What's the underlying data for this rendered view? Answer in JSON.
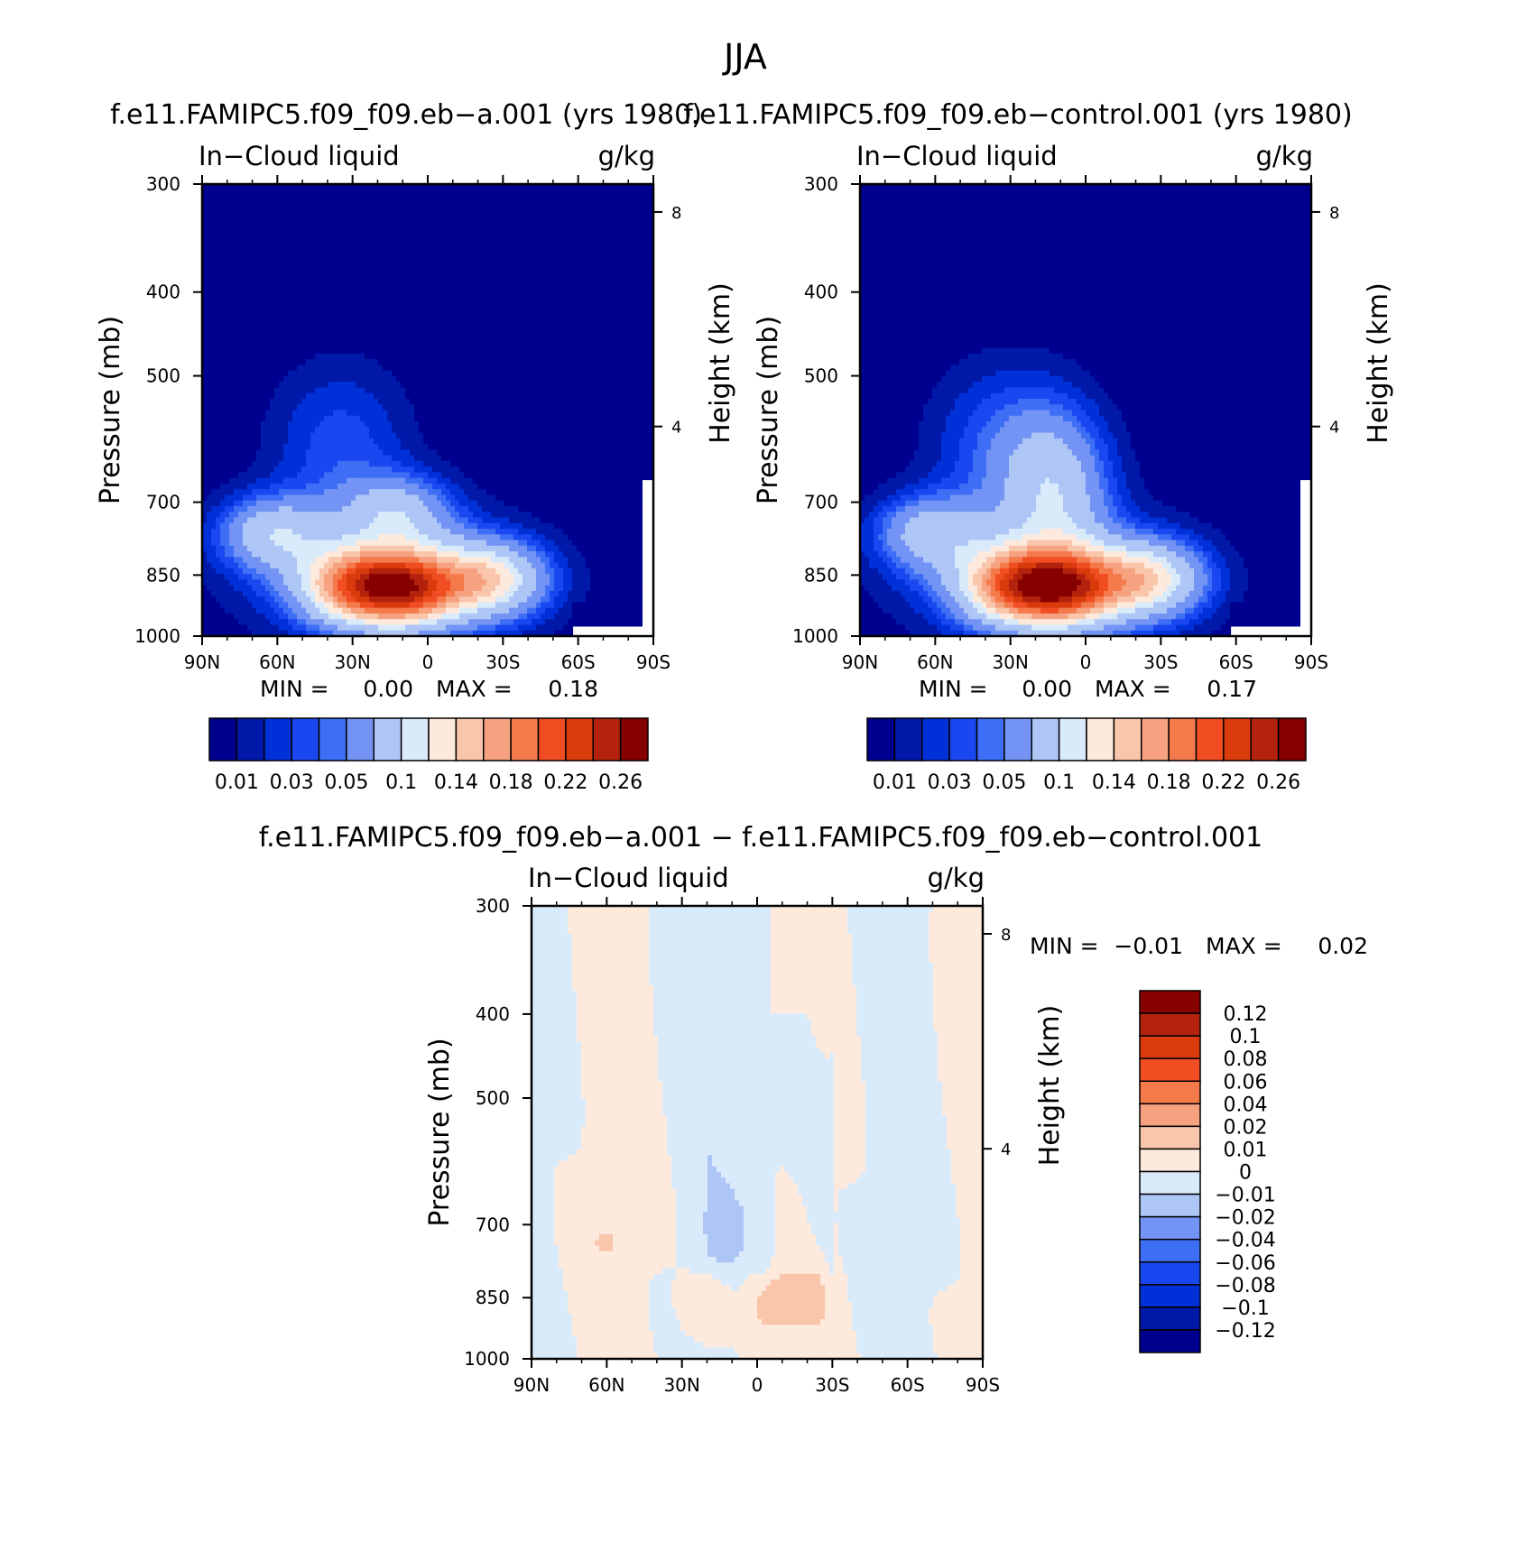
{
  "figure": {
    "title": "JJA",
    "diff_title": "f.e11.FAMIPC5.f09_f09.eb−a.001 − f.e11.FAMIPC5.f09_f09.eb−control.001"
  },
  "chart_data": [
    {
      "type": "contour",
      "title": "f.e11.FAMIPC5.f09_f09.eb−a.001 (yrs 1980)",
      "variable": "In−Cloud liquid",
      "units": "g/kg",
      "xlabel": "",
      "ylabel": "Pressure (mb)",
      "y2label": "Height (km)",
      "x_ticks": [
        "90N",
        "60N",
        "30N",
        "0",
        "30S",
        "60S",
        "90S"
      ],
      "x_range": [
        90,
        -90
      ],
      "y_ticks": [
        300,
        400,
        500,
        700,
        850,
        1000
      ],
      "y_range": [
        1000,
        300
      ],
      "y_scale": "log",
      "y2_ticks": [
        8,
        4
      ],
      "min_label": "MIN =",
      "min_value": "0.00",
      "max_label": "MAX =",
      "max_value": "0.18",
      "levels": [
        0.01,
        0.02,
        0.03,
        0.04,
        0.05,
        0.07,
        0.1,
        0.12,
        0.14,
        0.16,
        0.18,
        0.2,
        0.22,
        0.24,
        0.26
      ],
      "colorbar_labels": [
        "0.01",
        "0.03",
        "0.05",
        "0.1",
        "0.14",
        "0.18",
        "0.22",
        "0.26"
      ],
      "colors": [
        "#00008e",
        "#0019a8",
        "#0030d8",
        "#1a48f0",
        "#3e6ef5",
        "#7394f4",
        "#aec6f6",
        "#d9ebfa",
        "#fdeadc",
        "#f9c6ab",
        "#f6a280",
        "#f47a4b",
        "#f04e22",
        "#d93b0d",
        "#b3220c",
        "#870000"
      ],
      "field_centers": [
        {
          "lat": 8,
          "p": 880,
          "value": 0.17
        },
        {
          "lat": 30,
          "p": 875,
          "value": 0.13
        },
        {
          "lat": -25,
          "p": 860,
          "value": 0.11
        },
        {
          "lat": 62,
          "p": 760,
          "value": 0.08
        },
        {
          "lat": 12,
          "p": 720,
          "value": 0.07
        },
        {
          "lat": 35,
          "p": 600,
          "value": 0.035
        }
      ]
    },
    {
      "type": "contour",
      "title": "f.e11.FAMIPC5.f09_f09.eb−control.001 (yrs 1980)",
      "variable": "In−Cloud liquid",
      "units": "g/kg",
      "xlabel": "",
      "ylabel": "Pressure (mb)",
      "y2label": "Height (km)",
      "x_ticks": [
        "90N",
        "60N",
        "30N",
        "0",
        "30S",
        "60S",
        "90S"
      ],
      "x_range": [
        90,
        -90
      ],
      "y_ticks": [
        300,
        400,
        500,
        700,
        850,
        1000
      ],
      "y_range": [
        1000,
        300
      ],
      "y_scale": "log",
      "y2_ticks": [
        8,
        4
      ],
      "min_label": "MIN =",
      "min_value": "0.00",
      "max_label": "MAX =",
      "max_value": "0.17",
      "levels": [
        0.01,
        0.02,
        0.03,
        0.04,
        0.05,
        0.07,
        0.1,
        0.12,
        0.14,
        0.16,
        0.18,
        0.2,
        0.22,
        0.24,
        0.26
      ],
      "colorbar_labels": [
        "0.01",
        "0.03",
        "0.05",
        "0.1",
        "0.14",
        "0.18",
        "0.22",
        "0.26"
      ],
      "colors": [
        "#00008e",
        "#0019a8",
        "#0030d8",
        "#1a48f0",
        "#3e6ef5",
        "#7394f4",
        "#aec6f6",
        "#d9ebfa",
        "#fdeadc",
        "#f9c6ab",
        "#f6a280",
        "#f47a4b",
        "#f04e22",
        "#d93b0d",
        "#b3220c",
        "#870000"
      ],
      "field_centers": [
        {
          "lat": 8,
          "p": 880,
          "value": 0.16
        },
        {
          "lat": 30,
          "p": 875,
          "value": 0.13
        },
        {
          "lat": -25,
          "p": 860,
          "value": 0.11
        },
        {
          "lat": 62,
          "p": 760,
          "value": 0.075
        },
        {
          "lat": 12,
          "p": 680,
          "value": 0.08
        },
        {
          "lat": 35,
          "p": 600,
          "value": 0.035
        }
      ]
    },
    {
      "type": "contour",
      "title": "",
      "variable": "In−Cloud liquid",
      "units": "g/kg",
      "xlabel": "",
      "ylabel": "Pressure (mb)",
      "y2label": "Height (km)",
      "x_ticks": [
        "90N",
        "60N",
        "30N",
        "0",
        "30S",
        "60S",
        "90S"
      ],
      "x_range": [
        90,
        -90
      ],
      "y_ticks": [
        300,
        400,
        500,
        700,
        850,
        1000
      ],
      "y_range": [
        1000,
        300
      ],
      "y_scale": "log",
      "y2_ticks": [
        8,
        4
      ],
      "min_label": "MIN =",
      "min_value": "−0.01",
      "max_label": "MAX =",
      "max_value": "0.02",
      "levels": [
        -0.12,
        -0.1,
        -0.08,
        -0.06,
        -0.04,
        -0.02,
        -0.01,
        0,
        0.01,
        0.02,
        0.04,
        0.06,
        0.08,
        0.1,
        0.12
      ],
      "colorbar_labels": [
        "0.12",
        "0.1",
        "0.08",
        "0.06",
        "0.04",
        "0.02",
        "0.01",
        "0",
        "−0.01",
        "−0.02",
        "−0.04",
        "−0.06",
        "−0.08",
        "−0.1",
        "−0.12"
      ],
      "colors": [
        "#00008e",
        "#0019a8",
        "#0030d8",
        "#1a48f0",
        "#3e6ef5",
        "#7394f4",
        "#aec6f6",
        "#d9ebfa",
        "#fdeadc",
        "#f9c6ab",
        "#f6a280",
        "#f47a4b",
        "#f04e22",
        "#d93b0d",
        "#b3220c",
        "#870000"
      ],
      "field_centers": [
        {
          "lat": 20,
          "p": 880,
          "value": 0.012
        },
        {
          "lat": -5,
          "p": 870,
          "value": 0.015
        },
        {
          "lat": -20,
          "p": 850,
          "value": 0.01
        },
        {
          "lat": 60,
          "p": 730,
          "value": 0.008
        },
        {
          "lat": 15,
          "p": 700,
          "value": -0.009
        }
      ]
    }
  ]
}
